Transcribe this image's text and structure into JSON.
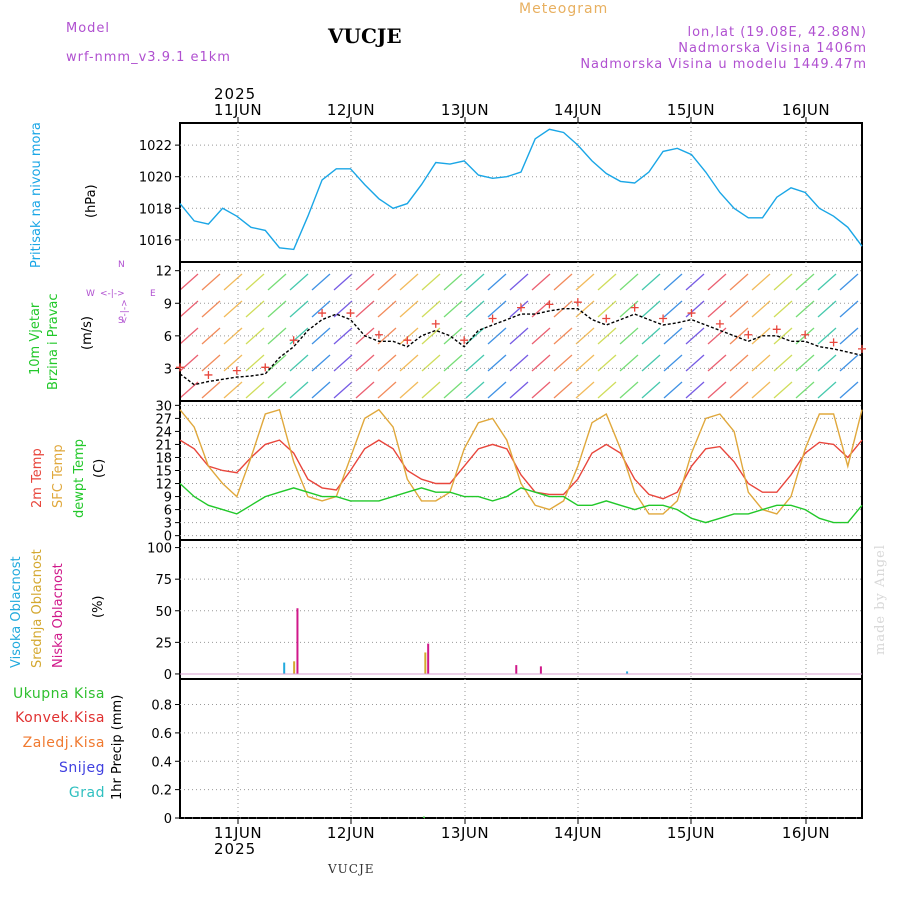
{
  "header": {
    "model_label": "Model",
    "model_name": "wrf-nmm_v3.9.1 e1km",
    "station": "VUCJE",
    "product": "Meteogram",
    "coords": "lon,lat (19.08E, 42.88N)",
    "elevation": "Nadmorska Visina 1406m",
    "model_elevation": "Nadmorska Visina u modelu 1449.47m"
  },
  "footer": {
    "station": "VUCJE",
    "watermark": "made by Angel"
  },
  "colors": {
    "pressure": "#1aa6e6",
    "temp2m": "#e8463c",
    "sfc_temp": "#e0a83c",
    "dewpt": "#22c82a",
    "high_cloud": "#22aadd",
    "mid_cloud": "#d4a830",
    "low_cloud": "#d0188a",
    "total_precip": "#30c030",
    "conv_precip": "#e03030",
    "frz_precip": "#f07a30",
    "snow": "#4040e0",
    "hail": "#30c0c0",
    "model_text": "#b050d0",
    "meteogram_text": "#e8b060"
  },
  "time_axis": {
    "year": "2025",
    "days": [
      "11JUN",
      "12JUN",
      "13JUN",
      "14JUN",
      "15JUN",
      "16JUN"
    ]
  },
  "panels": {
    "pressure": {
      "title": "Pritisak na nivou mora",
      "unit": "(hPa)"
    },
    "wind": {
      "title1": "10m Vjetar",
      "title2": "Brzina i Pravac",
      "unit": "(m/s)",
      "compass_n": "N",
      "compass_w": "W",
      "compass_e": "E",
      "compass_s": "S",
      "compass_ns": "<-|->",
      "compass_we": "<-|->"
    },
    "temp": {
      "t2m": "2m Temp",
      "sfc": "SFC Temp",
      "dewpt": "dewpt Temp",
      "unit": "(C)"
    },
    "cloud": {
      "high": "Visoka Oblacnost",
      "mid": "Srednja Oblacnost",
      "low": "Niska Oblacnost",
      "unit": "(%)"
    },
    "precip": {
      "total": "Ukupna Kisa",
      "conv": "Konvek.Kisa",
      "frz": "Zaledj.Kisa",
      "snow": "Snijeg",
      "hail": "Grad",
      "unit": "1hr Precip (mm)"
    }
  },
  "chart_data": [
    {
      "type": "line",
      "panel": "pressure",
      "ylabel": "(hPa)",
      "yticks": [
        1016,
        1018,
        1020,
        1022
      ],
      "ylim": [
        1014.6,
        1023.4
      ],
      "xlim": [
        0,
        144
      ],
      "grid": true,
      "x": [
        0,
        3,
        6,
        9,
        12,
        15,
        18,
        21,
        24,
        27,
        30,
        33,
        36,
        39,
        42,
        45,
        48,
        51,
        54,
        57,
        60,
        63,
        66,
        69,
        72,
        75,
        78,
        81,
        84,
        87,
        90,
        93,
        96,
        99,
        102,
        105,
        108,
        111,
        114,
        117,
        120,
        123,
        126,
        129,
        132,
        135,
        138,
        141,
        144
      ],
      "series": [
        {
          "name": "Pritisak na nivou mora",
          "values": [
            1018.3,
            1017.2,
            1017.0,
            1018.0,
            1017.5,
            1016.8,
            1016.6,
            1015.5,
            1015.4,
            1017.5,
            1019.8,
            1020.5,
            1020.5,
            1019.5,
            1018.6,
            1018.0,
            1018.3,
            1019.5,
            1020.9,
            1020.8,
            1021.0,
            1020.1,
            1019.9,
            1020.0,
            1020.3,
            1022.4,
            1023.0,
            1022.8,
            1022.0,
            1021.0,
            1020.2,
            1019.7,
            1019.6,
            1020.3,
            1021.6,
            1021.8,
            1021.4,
            1020.3,
            1019.0,
            1018.0,
            1017.4,
            1017.4,
            1018.7,
            1019.3,
            1019.0,
            1018.0,
            1017.5,
            1016.8,
            1015.6
          ]
        }
      ]
    },
    {
      "type": "line",
      "panel": "wind",
      "ylabel": "(m/s)",
      "yticks": [
        3,
        6,
        9,
        12
      ],
      "ylim": [
        0,
        12.8
      ],
      "xlim": [
        0,
        144
      ],
      "grid": true,
      "x": [
        0,
        3,
        6,
        9,
        12,
        15,
        18,
        21,
        24,
        27,
        30,
        33,
        36,
        39,
        42,
        45,
        48,
        51,
        54,
        57,
        60,
        63,
        66,
        69,
        72,
        75,
        78,
        81,
        84,
        87,
        90,
        93,
        96,
        99,
        102,
        105,
        108,
        111,
        114,
        117,
        120,
        123,
        126,
        129,
        132,
        135,
        138,
        141,
        144
      ],
      "series": [
        {
          "name": "10m Vjetar",
          "values": [
            2.5,
            1.5,
            1.8,
            2.0,
            2.2,
            2.3,
            2.5,
            4.0,
            5.0,
            6.5,
            7.5,
            8.0,
            7.5,
            6.0,
            5.5,
            5.5,
            5.0,
            6.0,
            6.5,
            6.0,
            5.0,
            6.5,
            7.0,
            7.5,
            8.0,
            8.0,
            8.3,
            8.5,
            8.5,
            7.5,
            7.0,
            7.5,
            8.0,
            7.5,
            7.0,
            7.2,
            7.5,
            7.0,
            6.5,
            6.0,
            5.5,
            6.0,
            6.0,
            5.5,
            5.5,
            5.0,
            4.8,
            4.5,
            4.2
          ]
        }
      ]
    },
    {
      "type": "line",
      "panel": "temp",
      "ylabel": "(C)",
      "yticks": [
        0,
        3,
        6,
        9,
        12,
        15,
        18,
        21,
        24,
        27,
        30
      ],
      "ylim": [
        -1,
        31
      ],
      "xlim": [
        0,
        144
      ],
      "grid": true,
      "x": [
        0,
        3,
        6,
        9,
        12,
        15,
        18,
        21,
        24,
        27,
        30,
        33,
        36,
        39,
        42,
        45,
        48,
        51,
        54,
        57,
        60,
        63,
        66,
        69,
        72,
        75,
        78,
        81,
        84,
        87,
        90,
        93,
        96,
        99,
        102,
        105,
        108,
        111,
        114,
        117,
        120,
        123,
        126,
        129,
        132,
        135,
        138,
        141,
        144
      ],
      "series": [
        {
          "name": "2m Temp",
          "values": [
            22,
            20,
            16,
            15,
            14.5,
            18,
            21,
            22,
            19,
            13,
            11,
            10.5,
            15,
            20,
            22,
            20,
            15,
            13,
            12,
            12,
            16,
            20,
            21,
            20,
            14,
            10,
            9.5,
            9.5,
            13,
            19,
            21,
            19,
            13,
            9.5,
            8.5,
            10,
            16,
            20,
            20.5,
            17,
            12,
            10,
            10,
            14,
            19,
            21.5,
            21,
            18,
            22
          ]
        },
        {
          "name": "SFC Temp",
          "values": [
            29,
            25,
            16,
            12,
            9,
            18,
            28,
            29,
            17,
            9,
            8,
            9,
            18,
            27,
            29,
            25,
            13,
            8,
            8,
            10,
            20,
            26,
            27,
            22,
            12,
            7,
            6,
            8,
            16,
            26,
            28,
            20,
            10,
            5,
            5,
            8,
            19,
            27,
            28,
            24,
            10,
            6,
            5,
            9,
            20,
            28,
            28,
            16,
            29
          ]
        },
        {
          "name": "dewpt Temp",
          "values": [
            12,
            9,
            7,
            6,
            5,
            7,
            9,
            10,
            11,
            10,
            9,
            9,
            8,
            8,
            8,
            9,
            10,
            11,
            10,
            10,
            9,
            9,
            8,
            9,
            11,
            10,
            9,
            9,
            7,
            7,
            8,
            7,
            6,
            7,
            7,
            6,
            4,
            3,
            4,
            5,
            5,
            6,
            7,
            7,
            6,
            4,
            3,
            3,
            7
          ]
        }
      ]
    },
    {
      "type": "bar",
      "panel": "cloud",
      "ylabel": "(%)",
      "yticks": [
        0,
        25,
        50,
        75,
        100
      ],
      "ylim": [
        -4,
        106
      ],
      "xlim": [
        0,
        144
      ],
      "grid": true,
      "series": [
        {
          "name": "Visoka Oblacnost",
          "x": [
            22.0,
            94.4
          ],
          "values": [
            9,
            2
          ]
        },
        {
          "name": "Srednja Oblacnost",
          "x": [
            24.1,
            51.8
          ],
          "values": [
            10,
            17
          ]
        },
        {
          "name": "Niska Oblacnost",
          "x": [
            24.8,
            52.4,
            71.0,
            76.2
          ],
          "values": [
            52,
            24,
            7,
            6
          ]
        }
      ]
    },
    {
      "type": "bar",
      "panel": "precip",
      "ylabel": "1hr Precip (mm)",
      "yticks": [
        0,
        0.2,
        0.4,
        0.6,
        0.8
      ],
      "ylim": [
        0,
        0.98
      ],
      "xlim": [
        0,
        144
      ],
      "grid": true,
      "series": [
        {
          "name": "Ukupna Kisa",
          "x": [
            51.5
          ],
          "values": [
            0.01
          ]
        }
      ]
    }
  ]
}
